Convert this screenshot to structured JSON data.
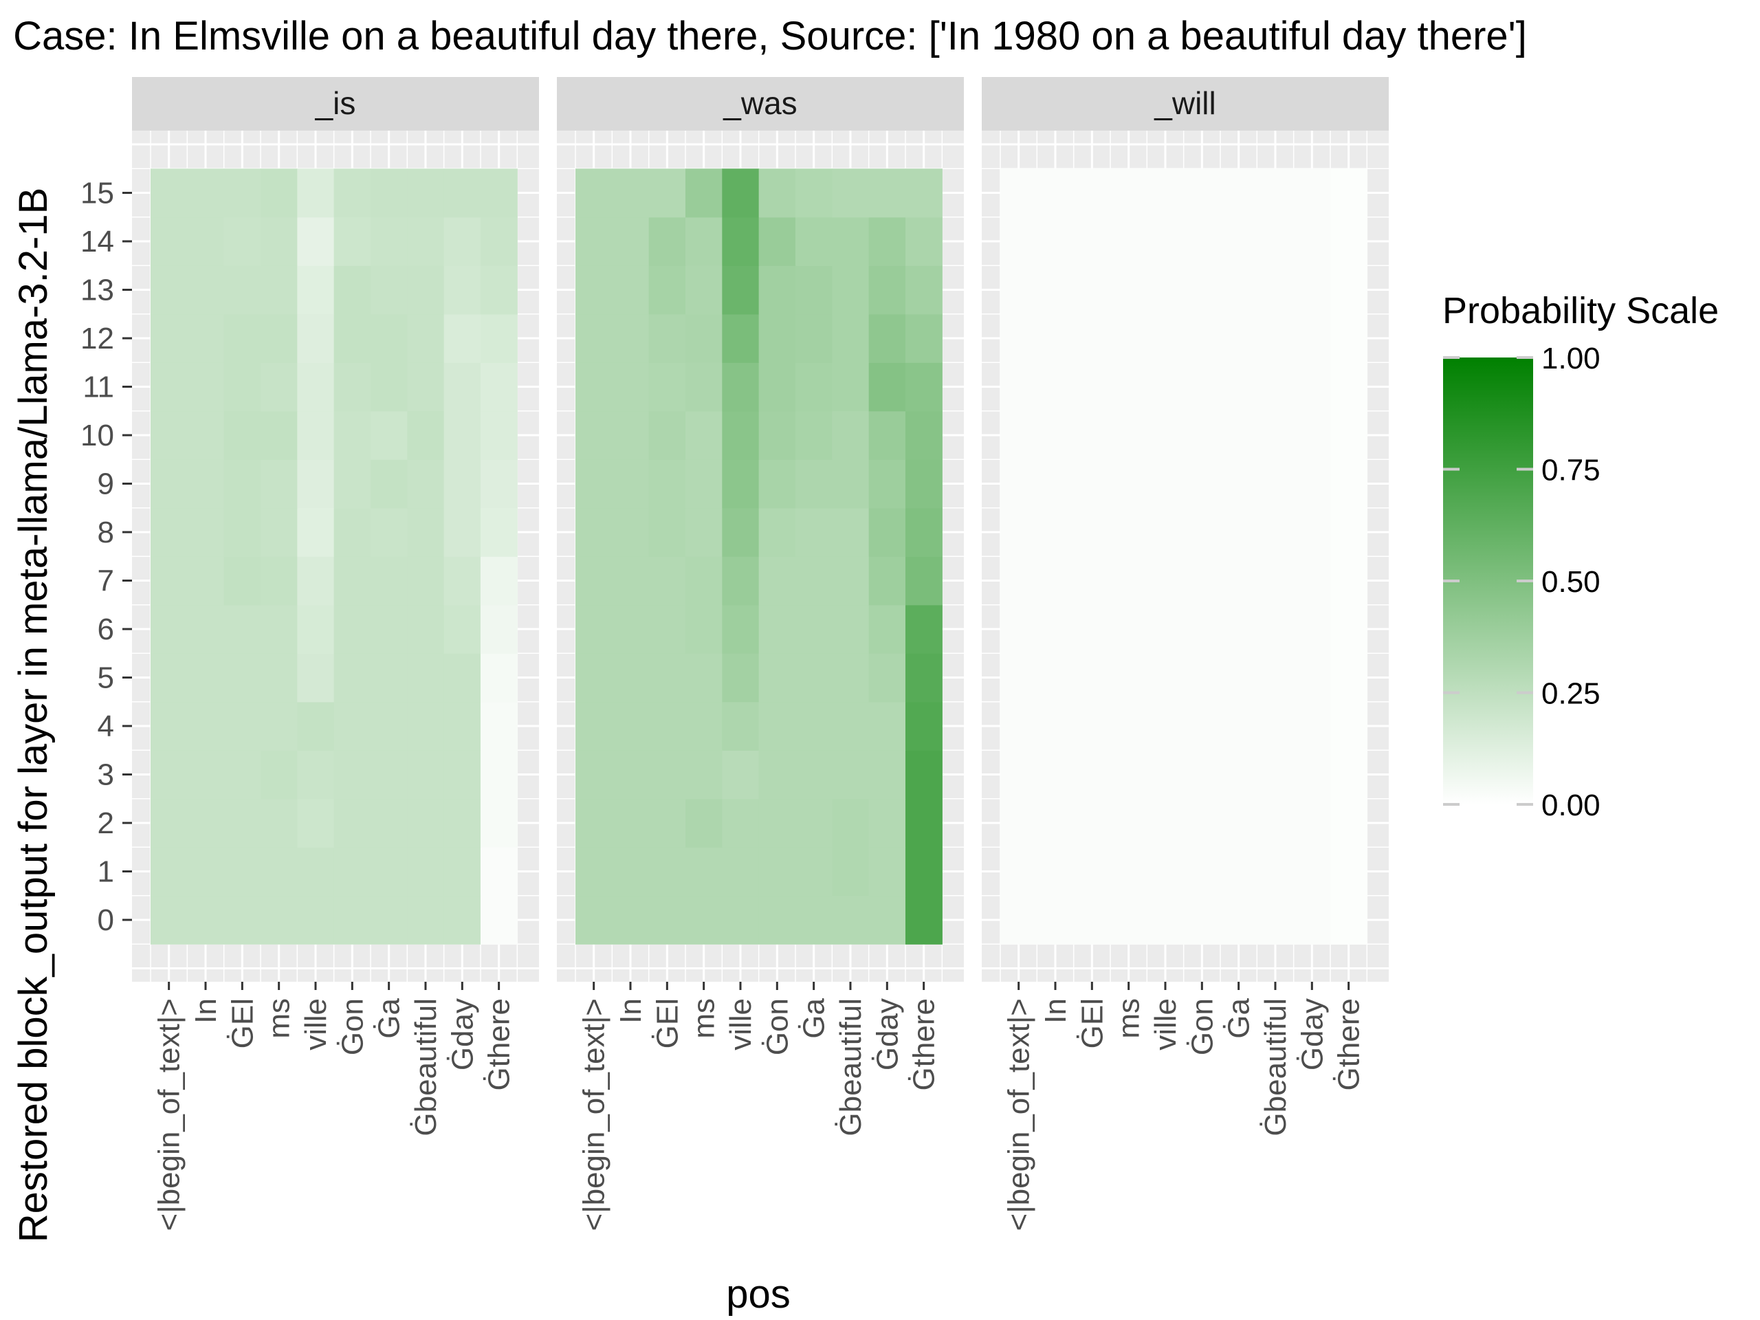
{
  "colors": {
    "panel_bg": "#EBEBEB",
    "strip_bg": "#D9D9D9",
    "grid": "#FFFFFF",
    "low": "#FFFFFF",
    "high": "#008000"
  },
  "chart_data": {
    "type": "heatmap",
    "title": "Case: In Elmsville on a beautiful day there, Source: ['In 1980 on a beautiful day there']",
    "xlabel": "pos",
    "ylabel": "Restored block_output for layer in meta-llama/Llama-3.2-1B",
    "legend_title": "Probability Scale",
    "legend_ticks": [
      "1.00",
      "0.75",
      "0.50",
      "0.25",
      "0.00"
    ],
    "legend_position": "right",
    "value_range": [
      0,
      1
    ],
    "x_tokens": [
      "<|begin_of_text|>",
      "In",
      "ĠEl",
      "ms",
      "ville",
      "Ġon",
      "Ġa",
      "Ġbeautiful",
      "Ġday",
      "Ġthere"
    ],
    "y_layers": [
      "0",
      "1",
      "2",
      "3",
      "4",
      "5",
      "6",
      "7",
      "8",
      "9",
      "10",
      "11",
      "12",
      "13",
      "14",
      "15"
    ],
    "panels": [
      {
        "label": "_is",
        "values": [
          [
            0.22,
            0.22,
            0.22,
            0.22,
            0.22,
            0.22,
            0.22,
            0.22,
            0.22,
            0.02
          ],
          [
            0.22,
            0.22,
            0.22,
            0.22,
            0.22,
            0.22,
            0.22,
            0.22,
            0.22,
            0.02
          ],
          [
            0.22,
            0.22,
            0.22,
            0.22,
            0.2,
            0.22,
            0.22,
            0.22,
            0.22,
            0.03
          ],
          [
            0.22,
            0.22,
            0.22,
            0.23,
            0.21,
            0.22,
            0.22,
            0.22,
            0.22,
            0.03
          ],
          [
            0.22,
            0.22,
            0.22,
            0.22,
            0.23,
            0.22,
            0.22,
            0.22,
            0.22,
            0.03
          ],
          [
            0.22,
            0.22,
            0.22,
            0.22,
            0.17,
            0.22,
            0.22,
            0.22,
            0.22,
            0.04
          ],
          [
            0.22,
            0.22,
            0.22,
            0.22,
            0.16,
            0.22,
            0.22,
            0.22,
            0.2,
            0.06
          ],
          [
            0.22,
            0.22,
            0.24,
            0.23,
            0.15,
            0.22,
            0.22,
            0.22,
            0.19,
            0.07
          ],
          [
            0.22,
            0.22,
            0.23,
            0.22,
            0.12,
            0.22,
            0.21,
            0.22,
            0.17,
            0.12
          ],
          [
            0.22,
            0.22,
            0.23,
            0.22,
            0.13,
            0.21,
            0.23,
            0.22,
            0.17,
            0.13
          ],
          [
            0.22,
            0.22,
            0.24,
            0.24,
            0.14,
            0.21,
            0.2,
            0.23,
            0.17,
            0.14
          ],
          [
            0.22,
            0.22,
            0.23,
            0.22,
            0.14,
            0.22,
            0.23,
            0.22,
            0.17,
            0.14
          ],
          [
            0.22,
            0.22,
            0.23,
            0.23,
            0.13,
            0.23,
            0.23,
            0.22,
            0.15,
            0.16
          ],
          [
            0.22,
            0.22,
            0.22,
            0.22,
            0.12,
            0.23,
            0.22,
            0.22,
            0.18,
            0.2
          ],
          [
            0.22,
            0.22,
            0.21,
            0.22,
            0.1,
            0.2,
            0.21,
            0.21,
            0.19,
            0.21
          ],
          [
            0.22,
            0.22,
            0.22,
            0.23,
            0.14,
            0.21,
            0.22,
            0.22,
            0.22,
            0.22
          ]
        ]
      },
      {
        "label": "_was",
        "values": [
          [
            0.3,
            0.3,
            0.3,
            0.3,
            0.3,
            0.3,
            0.3,
            0.3,
            0.3,
            0.7
          ],
          [
            0.3,
            0.3,
            0.3,
            0.3,
            0.3,
            0.3,
            0.3,
            0.31,
            0.3,
            0.7
          ],
          [
            0.3,
            0.3,
            0.3,
            0.32,
            0.3,
            0.3,
            0.3,
            0.31,
            0.3,
            0.7
          ],
          [
            0.3,
            0.3,
            0.3,
            0.3,
            0.28,
            0.3,
            0.3,
            0.3,
            0.3,
            0.7
          ],
          [
            0.3,
            0.3,
            0.3,
            0.3,
            0.32,
            0.3,
            0.3,
            0.3,
            0.3,
            0.68
          ],
          [
            0.3,
            0.3,
            0.3,
            0.3,
            0.36,
            0.3,
            0.3,
            0.3,
            0.32,
            0.66
          ],
          [
            0.3,
            0.3,
            0.3,
            0.31,
            0.38,
            0.3,
            0.3,
            0.3,
            0.34,
            0.64
          ],
          [
            0.3,
            0.3,
            0.3,
            0.31,
            0.4,
            0.3,
            0.3,
            0.3,
            0.38,
            0.52
          ],
          [
            0.3,
            0.3,
            0.31,
            0.3,
            0.43,
            0.31,
            0.3,
            0.3,
            0.4,
            0.5
          ],
          [
            0.3,
            0.3,
            0.31,
            0.3,
            0.45,
            0.34,
            0.32,
            0.32,
            0.38,
            0.48
          ],
          [
            0.3,
            0.3,
            0.32,
            0.3,
            0.46,
            0.36,
            0.34,
            0.32,
            0.4,
            0.47
          ],
          [
            0.3,
            0.3,
            0.31,
            0.32,
            0.47,
            0.37,
            0.35,
            0.34,
            0.48,
            0.46
          ],
          [
            0.3,
            0.3,
            0.32,
            0.33,
            0.52,
            0.37,
            0.36,
            0.34,
            0.44,
            0.4
          ],
          [
            0.3,
            0.3,
            0.35,
            0.32,
            0.58,
            0.37,
            0.36,
            0.34,
            0.4,
            0.36
          ],
          [
            0.3,
            0.3,
            0.36,
            0.33,
            0.6,
            0.4,
            0.34,
            0.34,
            0.38,
            0.33
          ],
          [
            0.3,
            0.3,
            0.3,
            0.4,
            0.62,
            0.33,
            0.31,
            0.3,
            0.3,
            0.3
          ]
        ]
      },
      {
        "label": "_will",
        "values": [
          [
            0.02,
            0.02,
            0.02,
            0.02,
            0.02,
            0.02,
            0.02,
            0.02,
            0.02,
            0.01
          ],
          [
            0.02,
            0.02,
            0.02,
            0.02,
            0.02,
            0.02,
            0.02,
            0.02,
            0.02,
            0.01
          ],
          [
            0.02,
            0.02,
            0.02,
            0.02,
            0.02,
            0.02,
            0.02,
            0.02,
            0.02,
            0.01
          ],
          [
            0.02,
            0.02,
            0.02,
            0.02,
            0.02,
            0.02,
            0.02,
            0.02,
            0.02,
            0.01
          ],
          [
            0.02,
            0.02,
            0.02,
            0.02,
            0.02,
            0.02,
            0.02,
            0.02,
            0.02,
            0.01
          ],
          [
            0.02,
            0.02,
            0.02,
            0.02,
            0.02,
            0.02,
            0.02,
            0.02,
            0.02,
            0.01
          ],
          [
            0.02,
            0.02,
            0.02,
            0.02,
            0.02,
            0.02,
            0.02,
            0.02,
            0.02,
            0.01
          ],
          [
            0.02,
            0.02,
            0.02,
            0.02,
            0.02,
            0.02,
            0.02,
            0.02,
            0.02,
            0.01
          ],
          [
            0.02,
            0.02,
            0.02,
            0.02,
            0.02,
            0.02,
            0.02,
            0.02,
            0.02,
            0.01
          ],
          [
            0.02,
            0.02,
            0.02,
            0.02,
            0.02,
            0.02,
            0.02,
            0.02,
            0.02,
            0.01
          ],
          [
            0.02,
            0.02,
            0.02,
            0.02,
            0.02,
            0.02,
            0.02,
            0.02,
            0.02,
            0.01
          ],
          [
            0.02,
            0.02,
            0.02,
            0.02,
            0.02,
            0.02,
            0.02,
            0.02,
            0.02,
            0.01
          ],
          [
            0.02,
            0.02,
            0.02,
            0.02,
            0.02,
            0.02,
            0.02,
            0.02,
            0.02,
            0.01
          ],
          [
            0.02,
            0.02,
            0.02,
            0.02,
            0.02,
            0.02,
            0.02,
            0.02,
            0.02,
            0.01
          ],
          [
            0.02,
            0.02,
            0.02,
            0.02,
            0.02,
            0.02,
            0.02,
            0.02,
            0.02,
            0.01
          ],
          [
            0.02,
            0.02,
            0.02,
            0.02,
            0.02,
            0.02,
            0.02,
            0.02,
            0.02,
            0.01
          ]
        ]
      }
    ]
  }
}
